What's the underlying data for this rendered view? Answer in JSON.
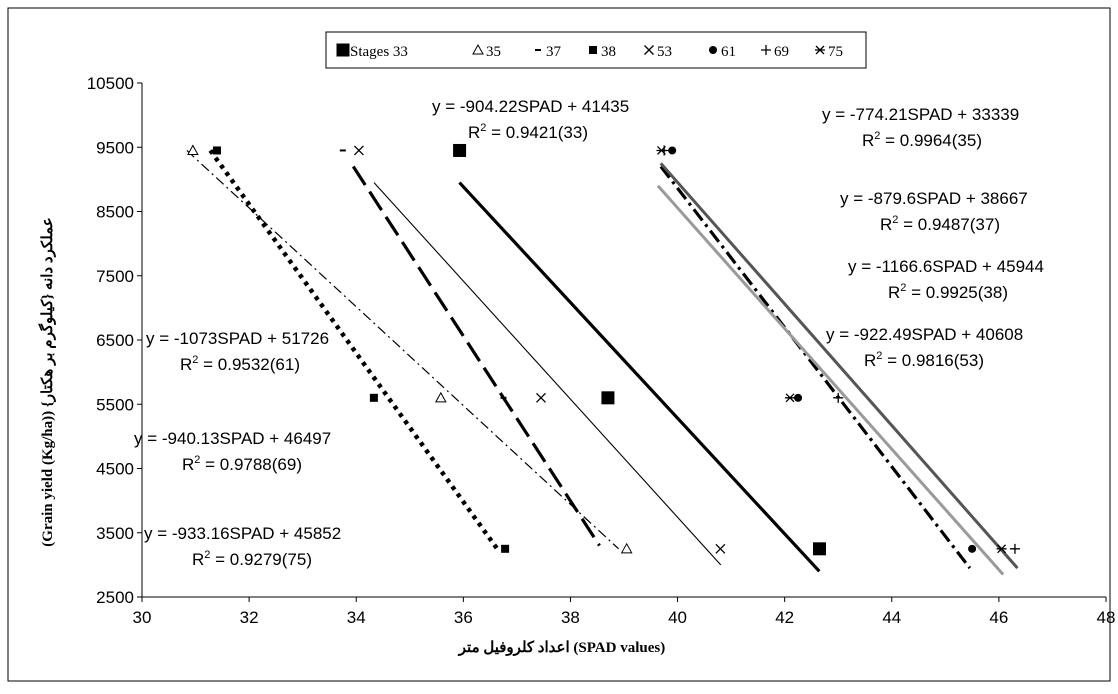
{
  "chart_data": {
    "type": "scatter",
    "xlabel": "اعداد کلروفیل متر (SPAD values)",
    "ylabel": "(Grain yield (Kg/ha)) {عملکرد دانه {کیلوگرم بر هکتار",
    "xlim": [
      30,
      48
    ],
    "ylim": [
      2500,
      10500
    ],
    "xticks": [
      "30",
      "32",
      "34",
      "36",
      "38",
      "40",
      "42",
      "44",
      "46",
      "48"
    ],
    "yticks": [
      "2500",
      "3500",
      "4500",
      "5500",
      "6500",
      "7500",
      "8500",
      "9500",
      "10500"
    ],
    "grid": false,
    "legend_position": "top",
    "series": [
      {
        "name": "Stages 33",
        "marker": "square-large",
        "line": "solid-thick",
        "color": "#000000",
        "x": [
          35.93,
          38.7,
          42.65
        ],
        "y": [
          9450,
          5600,
          3250
        ]
      },
      {
        "name": "35",
        "marker": "triangle",
        "line": "dash-dot-light",
        "color": "#000000",
        "x": [
          30.95,
          35.58,
          39.05
        ],
        "y": [
          9450,
          5600,
          3250
        ]
      },
      {
        "name": "37",
        "marker": "dash",
        "line": "dashed-thick",
        "color": "#000000",
        "x": [
          33.75,
          36.75
        ],
        "y": [
          9450,
          5600
        ]
      },
      {
        "name": "38",
        "marker": "square-small",
        "line": "dotted-thick",
        "color": "#000000",
        "x": [
          31.4,
          34.33,
          36.78
        ],
        "y": [
          9450,
          5600,
          3250
        ]
      },
      {
        "name": "53",
        "marker": "x",
        "line": "solid-thin",
        "color": "#000000",
        "x": [
          34.05,
          37.45,
          40.8
        ],
        "y": [
          9450,
          5600,
          3250
        ]
      },
      {
        "name": "61",
        "marker": "circle",
        "line": "dash-dot-thick",
        "color": "#000000",
        "x": [
          39.9,
          42.25,
          45.5
        ],
        "y": [
          9450,
          5600,
          3250
        ]
      },
      {
        "name": "69",
        "marker": "plus",
        "line": "solid-dark-gray",
        "color": "#555555",
        "x": [
          39.75,
          43.0,
          46.3
        ],
        "y": [
          9450,
          5600,
          3250
        ]
      },
      {
        "name": "75",
        "marker": "asterisk",
        "line": "solid-gray",
        "color": "#999999",
        "x": [
          39.7,
          42.1,
          46.05
        ],
        "y": [
          9450,
          5600,
          3250
        ]
      }
    ],
    "annotations": [
      {
        "eq": "y = -904.22SPAD + 41435",
        "r2": "= 0.9421(33)"
      },
      {
        "eq": "y = -774.21SPAD + 33339",
        "r2": "= 0.9964(35)"
      },
      {
        "eq": "y = -879.6SPAD + 38667",
        "r2": "= 0.9487(37)"
      },
      {
        "eq": "y = -1166.6SPAD + 45944",
        "r2": "= 0.9925(38)"
      },
      {
        "eq": "y = -922.49SPAD + 40608",
        "r2": "= 0.9816(53)"
      },
      {
        "eq": "y = -1073SPAD + 51726",
        "r2": "= 0.9532(61)"
      },
      {
        "eq": "y = -940.13SPAD + 46497",
        "r2": "= 0.9788(69)"
      },
      {
        "eq": "y = -933.16SPAD + 45852",
        "r2": "= 0.9279(75)"
      }
    ]
  }
}
